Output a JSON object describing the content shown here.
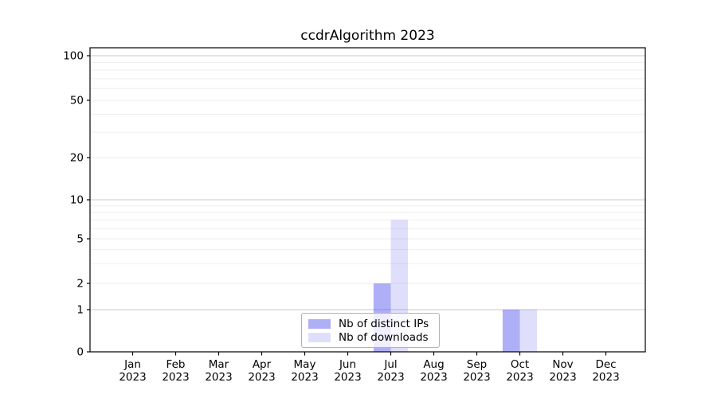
{
  "title": "ccdrAlgorithm 2023",
  "chart_data": {
    "type": "bar",
    "categories": [
      {
        "month": "Jan",
        "year": "2023"
      },
      {
        "month": "Feb",
        "year": "2023"
      },
      {
        "month": "Mar",
        "year": "2023"
      },
      {
        "month": "Apr",
        "year": "2023"
      },
      {
        "month": "May",
        "year": "2023"
      },
      {
        "month": "Jun",
        "year": "2023"
      },
      {
        "month": "Jul",
        "year": "2023"
      },
      {
        "month": "Aug",
        "year": "2023"
      },
      {
        "month": "Sep",
        "year": "2023"
      },
      {
        "month": "Oct",
        "year": "2023"
      },
      {
        "month": "Nov",
        "year": "2023"
      },
      {
        "month": "Dec",
        "year": "2023"
      }
    ],
    "series": [
      {
        "name": "Nb of distinct IPs",
        "color": "rgba(77,77,238,0.45)",
        "values": [
          0,
          0,
          0,
          0,
          0,
          0,
          2,
          0,
          0,
          1,
          0,
          0
        ]
      },
      {
        "name": "Nb of downloads",
        "color": "rgba(77,77,238,0.18)",
        "values": [
          0,
          0,
          0,
          0,
          0,
          0,
          7,
          0,
          0,
          1,
          0,
          0
        ]
      }
    ],
    "yscale": "symlog",
    "yticks": [
      0,
      1,
      2,
      5,
      10,
      20,
      50,
      100
    ],
    "ylim": [
      0,
      100
    ],
    "xlabel": "",
    "ylabel": "",
    "grid": "horizontal",
    "legend_position": "lower-center",
    "colors": {
      "axis": "#000000",
      "tick_label": "#000000",
      "grid_major": "#c9c9c9",
      "grid_minor": "#eeeeee",
      "legend_border": "#b3b3b3"
    }
  }
}
